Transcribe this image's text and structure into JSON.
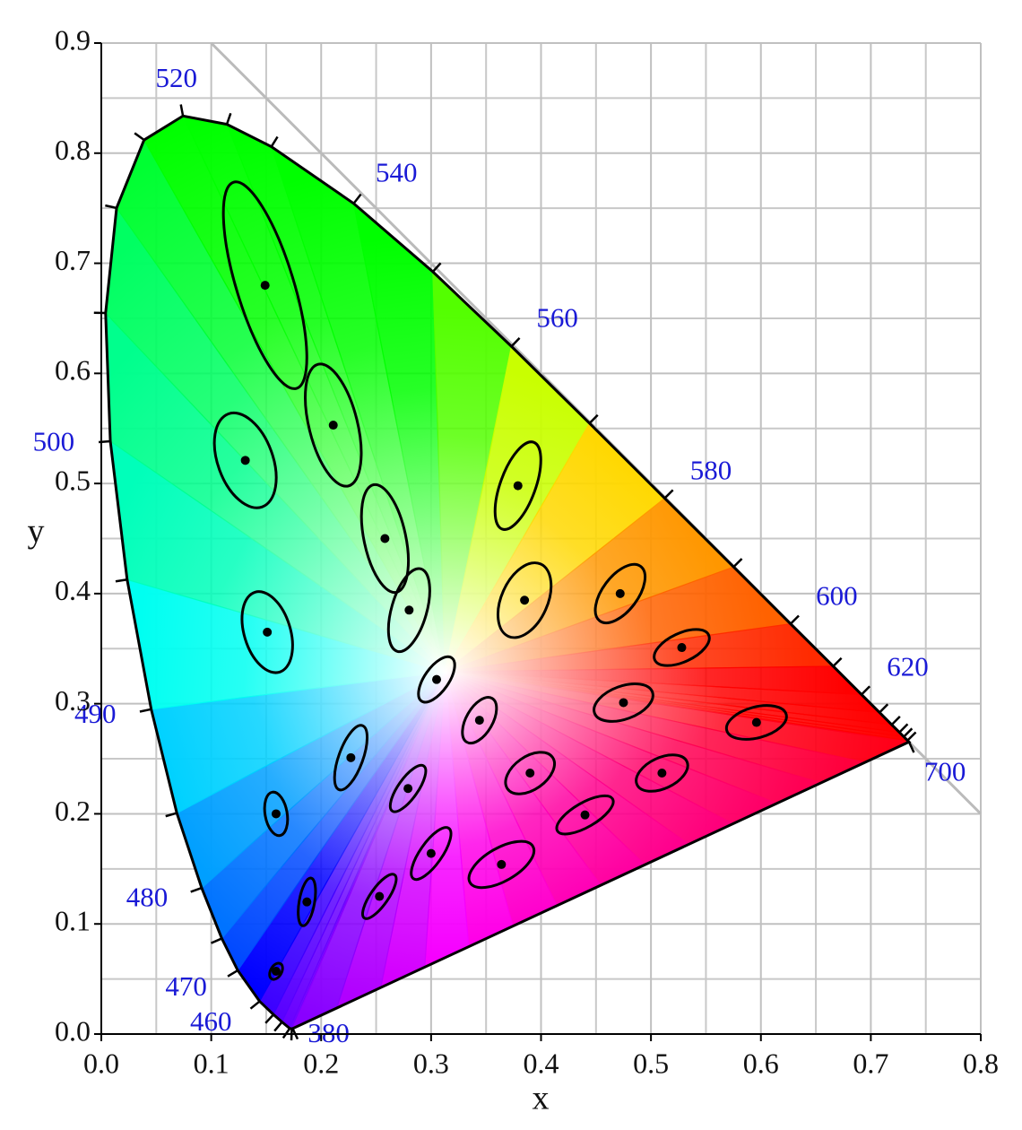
{
  "chart_data": {
    "type": "scatter",
    "xlabel": "x",
    "ylabel": "y",
    "xlim": [
      0,
      0.8
    ],
    "ylim": [
      0,
      0.9
    ],
    "xticks": [
      {
        "value": 0,
        "label": "0.0"
      },
      0.1,
      0.2,
      0.3,
      0.4,
      0.5,
      0.6,
      0.7,
      0.8
    ],
    "yticks": [
      {
        "value": 0,
        "label": "0.0"
      },
      0.1,
      0.2,
      0.3,
      0.4,
      0.5,
      0.6,
      0.7,
      0.8,
      0.9
    ],
    "xminorticks": [
      0.05,
      0.15,
      0.25,
      0.35,
      0.45,
      0.55,
      0.65,
      0.75
    ],
    "yminorticks": [
      0.05,
      0.15,
      0.25,
      0.35,
      0.45,
      0.55,
      0.65,
      0.75,
      0.85
    ],
    "grid": true,
    "reference_line": {
      "x": [
        0.1,
        0.8
      ],
      "y": [
        0.9,
        0.2
      ],
      "color": "#bbbbbb"
    },
    "spectral_locus": {
      "labels": [
        380,
        null,
        null,
        null,
        null,
        460,
        470,
        null,
        480,
        null,
        490,
        null,
        500,
        null,
        null,
        null,
        520,
        null,
        null,
        540,
        null,
        560,
        null,
        580,
        null,
        600,
        null,
        620,
        null,
        null,
        null,
        null,
        null,
        700
      ],
      "x": [
        0.1741,
        0.1733,
        0.1714,
        0.1644,
        0.1566,
        0.144,
        0.1241,
        0.1096,
        0.0913,
        0.0687,
        0.0454,
        0.0235,
        0.0082,
        0.0039,
        0.0139,
        0.0389,
        0.0743,
        0.1142,
        0.1547,
        0.2296,
        0.3016,
        0.3731,
        0.4441,
        0.5125,
        0.5752,
        0.627,
        0.6658,
        0.6915,
        0.7079,
        0.719,
        0.726,
        0.73,
        0.7334,
        0.7347
      ],
      "y": [
        0.005,
        0.0048,
        0.0051,
        0.0109,
        0.0177,
        0.0297,
        0.0578,
        0.0868,
        0.1327,
        0.2007,
        0.295,
        0.4127,
        0.5384,
        0.6548,
        0.7502,
        0.812,
        0.8338,
        0.8262,
        0.8059,
        0.7543,
        0.6923,
        0.6245,
        0.5547,
        0.4866,
        0.4242,
        0.3725,
        0.334,
        0.3083,
        0.292,
        0.2809,
        0.274,
        0.27,
        0.2666,
        0.2653
      ]
    },
    "ellipses": {
      "color": "#000000",
      "x": [
        0.149,
        0.211,
        0.131,
        0.258,
        0.379,
        0.151,
        0.28,
        0.385,
        0.472,
        0.528,
        0.305,
        0.344,
        0.475,
        0.596,
        0.227,
        0.279,
        0.39,
        0.51,
        0.159,
        0.3,
        0.44,
        0.364,
        0.187,
        0.253,
        0.159
      ],
      "y": [
        0.68,
        0.553,
        0.521,
        0.45,
        0.498,
        0.365,
        0.385,
        0.394,
        0.4,
        0.351,
        0.322,
        0.285,
        0.301,
        0.283,
        0.251,
        0.223,
        0.237,
        0.237,
        0.2,
        0.164,
        0.199,
        0.154,
        0.12,
        0.125,
        0.057
      ],
      "semi_major": [
        0.098,
        0.057,
        0.045,
        0.05,
        0.042,
        0.038,
        0.039,
        0.036,
        0.031,
        0.027,
        0.024,
        0.023,
        0.028,
        0.028,
        0.031,
        0.025,
        0.025,
        0.025,
        0.02,
        0.028,
        0.029,
        0.033,
        0.022,
        0.024,
        0.008
      ],
      "semi_minor": [
        0.026,
        0.022,
        0.025,
        0.019,
        0.016,
        0.021,
        0.016,
        0.021,
        0.016,
        0.013,
        0.011,
        0.012,
        0.015,
        0.014,
        0.011,
        0.009,
        0.015,
        0.014,
        0.01,
        0.01,
        0.011,
        0.015,
        0.007,
        0.008,
        0.005
      ],
      "angle": [
        107,
        104,
        110,
        102,
        70,
        107,
        74,
        66,
        53,
        25,
        55,
        60,
        20,
        15,
        70,
        55,
        35,
        25,
        100,
        55,
        30,
        30,
        80,
        55,
        60
      ]
    }
  }
}
